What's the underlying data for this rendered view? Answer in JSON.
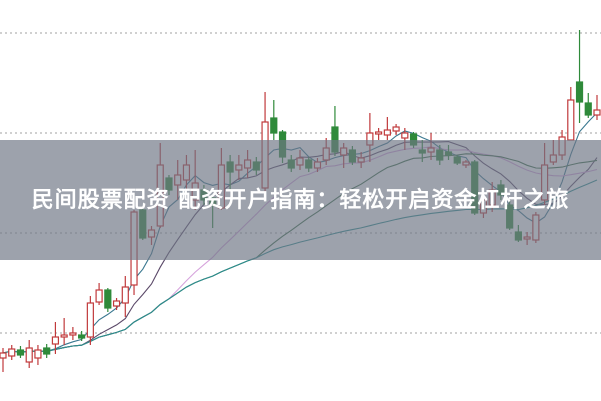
{
  "headline": "民间股票配资 配资开户指南：轻松开启资金杠杆之旅",
  "chart_data": {
    "type": "candlestick",
    "title": "",
    "xlabel": "",
    "ylabel": "",
    "ylim": [
      -0.4,
      3.33
    ],
    "grid": true,
    "gridlines": [
      0,
      1,
      2,
      3
    ],
    "colors": {
      "up": "#c0393b",
      "down": "#2f8a3a",
      "grid": "#b5b5b5"
    },
    "moving_averages": [
      {
        "period": 5,
        "color": "#3a7890"
      },
      {
        "period": 10,
        "color": "#5a4868"
      },
      {
        "period": 20,
        "color": "#d6a3dc"
      },
      {
        "period": 30,
        "color": "#3d6e48"
      },
      {
        "period": 60,
        "color": "#2b8d8f"
      }
    ],
    "candles": [
      [
        -0.25,
        -0.15,
        -0.39,
        -0.2
      ],
      [
        -0.23,
        -0.12,
        -0.27,
        -0.16
      ],
      [
        -0.17,
        -0.13,
        -0.25,
        -0.22
      ],
      [
        -0.29,
        -0.07,
        -0.35,
        -0.15
      ],
      [
        -0.25,
        -0.12,
        -0.32,
        -0.17
      ],
      [
        -0.15,
        -0.11,
        -0.25,
        -0.21
      ],
      [
        -0.11,
        0.11,
        -0.21,
        -0.04
      ],
      [
        -0.04,
        0.15,
        -0.12,
        -0.02
      ],
      [
        -0.02,
        0.06,
        -0.07,
        0.0
      ],
      [
        -0.02,
        0.02,
        -0.08,
        -0.05
      ],
      [
        -0.04,
        0.37,
        -0.12,
        0.3
      ],
      [
        0.31,
        0.5,
        0.28,
        0.43
      ],
      [
        0.43,
        0.45,
        0.21,
        0.25
      ],
      [
        0.27,
        0.35,
        0.23,
        0.32
      ],
      [
        0.3,
        0.57,
        0.16,
        0.46
      ],
      [
        0.48,
        1.23,
        0.38,
        1.21
      ],
      [
        1.23,
        1.25,
        0.93,
        0.95
      ],
      [
        0.96,
        1.07,
        0.88,
        1.03
      ],
      [
        1.07,
        1.9,
        1.05,
        1.68
      ],
      [
        1.55,
        1.58,
        1.38,
        1.43
      ],
      [
        1.48,
        1.73,
        1.33,
        1.58
      ],
      [
        1.53,
        1.78,
        1.43,
        1.68
      ],
      [
        1.33,
        1.83,
        1.23,
        1.5
      ],
      [
        1.43,
        1.48,
        1.28,
        1.33
      ],
      [
        1.35,
        1.38,
        1.05,
        1.29
      ],
      [
        1.25,
        1.85,
        1.23,
        1.68
      ],
      [
        1.71,
        1.78,
        1.43,
        1.61
      ],
      [
        1.63,
        1.78,
        1.53,
        1.68
      ],
      [
        1.65,
        1.83,
        1.55,
        1.73
      ],
      [
        1.71,
        1.76,
        1.58,
        1.63
      ],
      [
        1.45,
        2.41,
        1.33,
        2.11
      ],
      [
        2.15,
        2.33,
        1.93,
        2.0
      ],
      [
        2.01,
        2.03,
        1.7,
        1.76
      ],
      [
        1.73,
        1.78,
        1.61,
        1.65
      ],
      [
        1.68,
        1.83,
        1.63,
        1.75
      ],
      [
        1.73,
        1.76,
        1.61,
        1.65
      ],
      [
        1.65,
        1.75,
        1.61,
        1.71
      ],
      [
        1.73,
        1.95,
        1.68,
        1.85
      ],
      [
        2.06,
        2.27,
        1.77,
        1.81
      ],
      [
        1.78,
        1.9,
        1.65,
        1.85
      ],
      [
        1.83,
        1.87,
        1.68,
        1.71
      ],
      [
        1.71,
        1.81,
        1.65,
        1.75
      ],
      [
        1.88,
        2.2,
        1.71,
        2.0
      ],
      [
        1.99,
        2.05,
        1.93,
        2.01
      ],
      [
        1.98,
        2.16,
        1.93,
        2.03
      ],
      [
        2.02,
        2.09,
        1.98,
        2.06
      ],
      [
        1.95,
        2.05,
        1.83,
        2.0
      ],
      [
        1.99,
        2.01,
        1.85,
        1.88
      ],
      [
        1.83,
        1.93,
        1.71,
        1.8
      ],
      [
        1.81,
        2.0,
        1.73,
        1.85
      ],
      [
        1.83,
        1.88,
        1.68,
        1.73
      ],
      [
        1.81,
        1.88,
        1.73,
        1.78
      ],
      [
        1.76,
        1.78,
        1.68,
        1.7
      ],
      [
        1.68,
        1.73,
        1.65,
        1.71
      ],
      [
        1.71,
        1.73,
        1.18,
        1.2
      ],
      [
        1.2,
        1.38,
        1.15,
        1.33
      ],
      [
        1.28,
        1.51,
        1.21,
        1.43
      ],
      [
        1.48,
        1.53,
        1.33,
        1.38
      ],
      [
        1.28,
        1.35,
        1.03,
        1.05
      ],
      [
        1.01,
        1.08,
        0.91,
        0.93
      ],
      [
        0.94,
        1.01,
        0.88,
        0.96
      ],
      [
        0.93,
        1.21,
        0.9,
        1.18
      ],
      [
        1.33,
        1.9,
        1.28,
        1.68
      ],
      [
        1.71,
        1.93,
        1.68,
        1.78
      ],
      [
        1.78,
        2.03,
        1.73,
        1.96
      ],
      [
        1.93,
        2.46,
        1.93,
        2.33
      ],
      [
        2.51,
        3.03,
        2.1,
        2.31
      ],
      [
        2.3,
        2.4,
        2.15,
        2.18
      ],
      [
        2.18,
        2.38,
        2.13,
        2.23
      ]
    ]
  }
}
